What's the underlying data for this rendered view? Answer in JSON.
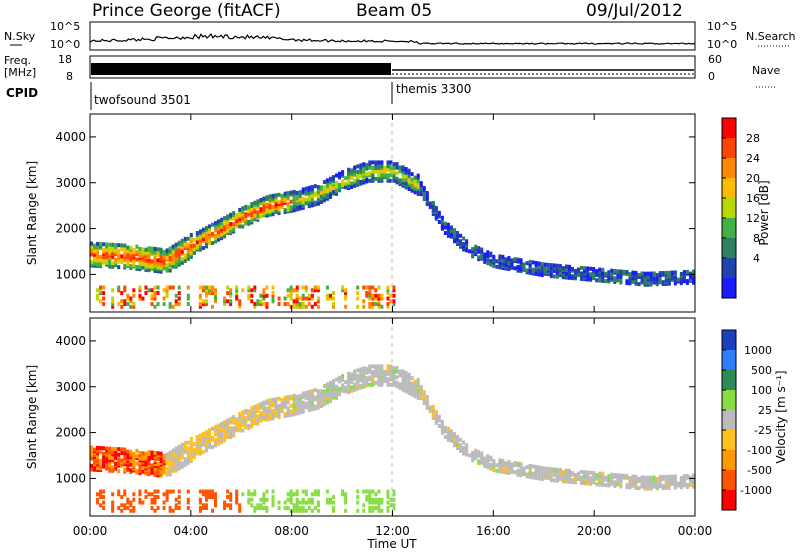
{
  "header": {
    "station": "Prince George (fitACF)",
    "beam": "Beam 05",
    "date": "09/Jul/2012"
  },
  "top_panels": {
    "nsky": {
      "label": "N.Sky",
      "ticks": [
        "10^5",
        "10^0"
      ],
      "right_label": "N.Search",
      "right_ticks": [
        "10^5",
        "10^0"
      ]
    },
    "freq": {
      "label_line1": "Freq.",
      "label_line2": "[MHz]",
      "ticks": [
        "18",
        "8"
      ],
      "right_label": "Nave",
      "right_ticks": [
        "60",
        "0"
      ]
    },
    "cpid": {
      "label": "CPID",
      "modes": [
        {
          "name": "twofsound 3501",
          "start_hour": 0
        },
        {
          "name": "themis 3300",
          "start_hour": 12
        }
      ]
    }
  },
  "axes": {
    "x_ticks": [
      "00:00",
      "04:00",
      "08:00",
      "12:00",
      "16:00",
      "20:00",
      "00:00"
    ],
    "x_label": "Time UT",
    "y_label": "Slant Range [km]",
    "y_ticks": [
      "1000",
      "2000",
      "3000",
      "4000"
    ]
  },
  "chart_data": [
    {
      "type": "heatmap",
      "title": "",
      "xlabel": "Time UT",
      "ylabel": "Slant Range [km]",
      "xlim": [
        0,
        24
      ],
      "ylim": [
        180,
        4500
      ],
      "colorbar": {
        "label": "Power [dB]",
        "ticks": [
          "28",
          "24",
          "20",
          "16",
          "12",
          "8",
          "4"
        ],
        "colors": [
          "#ff0000",
          "#ff4400",
          "#ff8800",
          "#ffbb00",
          "#b8d800",
          "#44b044",
          "#2e8060",
          "#2244aa",
          "#1a1aff"
        ]
      },
      "echo_bands": [
        {
          "name": "main",
          "points": [
            [
              0,
              1400
            ],
            [
              1.5,
              1350
            ],
            [
              3,
              1250
            ],
            [
              4,
              1600
            ],
            [
              5,
              1900
            ],
            [
              6,
              2200
            ],
            [
              7,
              2450
            ],
            [
              8,
              2550
            ],
            [
              9,
              2700
            ],
            [
              10,
              3000
            ],
            [
              11,
              3200
            ],
            [
              12,
              3200
            ],
            [
              13,
              2900
            ],
            [
              14,
              2000
            ],
            [
              15,
              1500
            ],
            [
              16,
              1250
            ],
            [
              18,
              1050
            ],
            [
              20,
              950
            ],
            [
              22,
              850
            ],
            [
              24,
              900
            ]
          ]
        }
      ]
    },
    {
      "type": "heatmap",
      "title": "",
      "xlabel": "Time UT",
      "ylabel": "Slant Range [km]",
      "xlim": [
        0,
        24
      ],
      "ylim": [
        180,
        4500
      ],
      "colorbar": {
        "label": "Velocity [m s⁻¹]",
        "ticks": [
          "1000",
          "500",
          "100",
          "25",
          "-25",
          "-100",
          "-500",
          "-1000"
        ],
        "colors": [
          "#1a3fbf",
          "#2e7fff",
          "#2e8b57",
          "#88dd44",
          "#bbbbbb",
          "#ffc020",
          "#ff9900",
          "#ff5500",
          "#ff0000"
        ]
      }
    }
  ]
}
